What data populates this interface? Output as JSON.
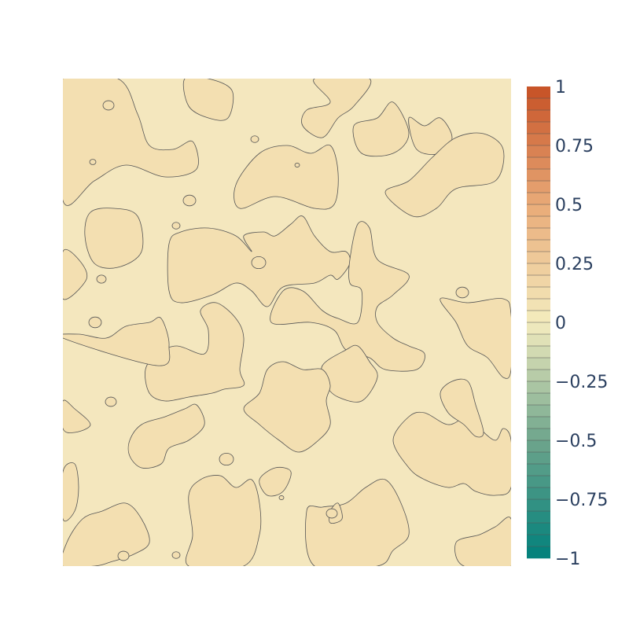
{
  "chart_data": {
    "type": "contour",
    "title": "",
    "xlabel": "",
    "ylabel": "",
    "zmin": -1,
    "zmax": 1,
    "contour_levels": [
      0,
      0.05
    ],
    "field_range_visible": [
      0,
      0.1
    ],
    "background_fill_color": "#f4e7be",
    "region_fill_color": "#f3dfb1",
    "contour_line_color": "#555555",
    "colorscale": [
      [
        0.0,
        "#00807b"
      ],
      [
        0.25,
        "#6ea58c"
      ],
      [
        0.5,
        "#f4ecbe"
      ],
      [
        0.75,
        "#e9ab78"
      ],
      [
        1.0,
        "#c65025"
      ]
    ],
    "colorbar": {
      "tickvals": [
        1,
        0.75,
        0.5,
        0.25,
        0,
        -0.25,
        -0.5,
        -0.75,
        -1
      ],
      "ticktext": [
        "1",
        "0.75",
        "0.5",
        "0.25",
        "0",
        "−0.25",
        "−0.5",
        "−0.75",
        "−1"
      ],
      "ncontours": 40
    }
  }
}
